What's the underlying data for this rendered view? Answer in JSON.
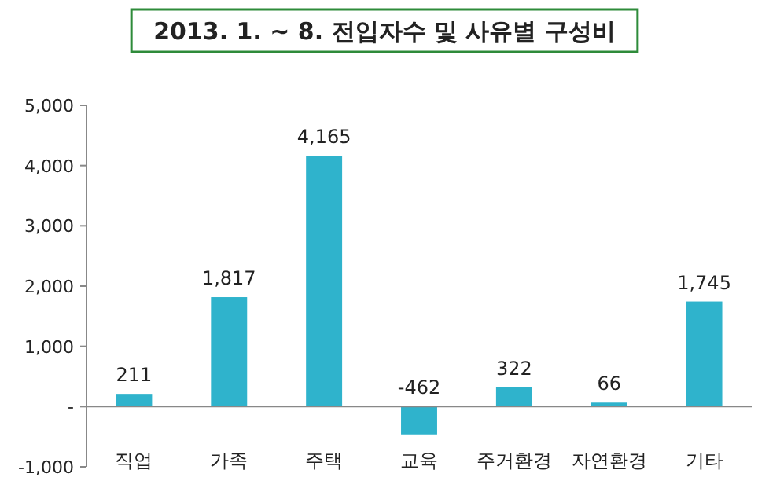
{
  "chart_data": {
    "type": "bar",
    "title": "2013. 1. ~ 8. 전입자수 및 사유별 구성비",
    "categories": [
      "직업",
      "가족",
      "주택",
      "교육",
      "주거환경",
      "자연환경",
      "기타"
    ],
    "values": [
      211,
      1817,
      4165,
      -462,
      322,
      66,
      1745
    ],
    "value_labels": [
      "211",
      "1,817",
      "4,165",
      "-462",
      "322",
      "66",
      "1,745"
    ],
    "color": "#2fb3cc",
    "ylim": [
      -1000,
      5000
    ],
    "yticks": [
      {
        "value": -1000,
        "label": "-1,000"
      },
      {
        "value": 0,
        "label": "-"
      },
      {
        "value": 1000,
        "label": "1,000"
      },
      {
        "value": 2000,
        "label": "2,000"
      },
      {
        "value": 3000,
        "label": "3,000"
      },
      {
        "value": 4000,
        "label": "4,000"
      },
      {
        "value": 5000,
        "label": "5,000"
      }
    ],
    "grid": false
  }
}
